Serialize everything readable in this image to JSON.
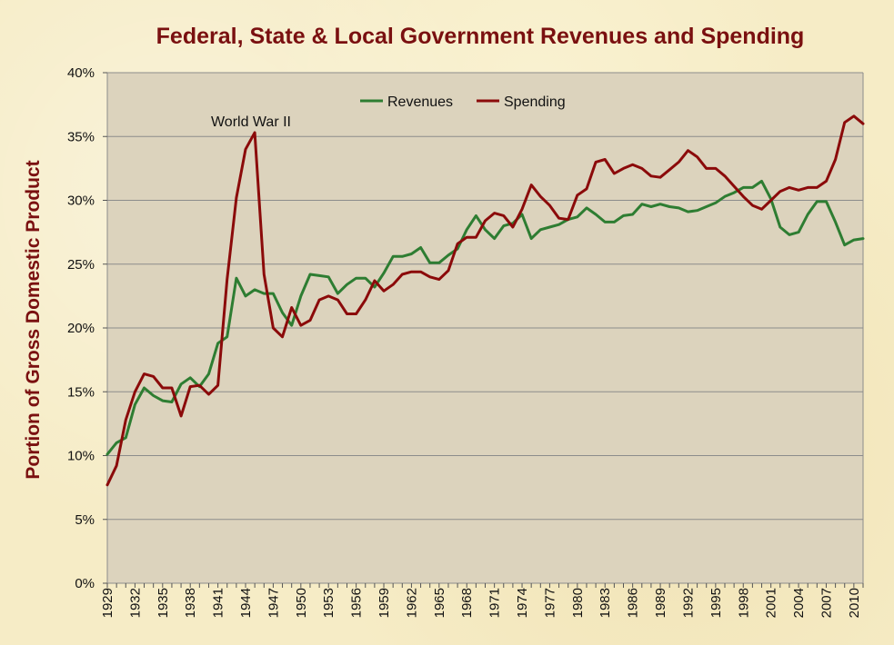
{
  "chart_data": {
    "type": "line",
    "title": "Federal, State & Local Government Revenues and Spending",
    "ylabel": "Portion of Gross Domestic Product",
    "xlabel": "",
    "xlim": [
      1929,
      2011
    ],
    "ylim": [
      0,
      40
    ],
    "yticks": [
      "0%",
      "5%",
      "10%",
      "15%",
      "20%",
      "25%",
      "30%",
      "35%",
      "40%"
    ],
    "xticks": [
      "1929",
      "1932",
      "1935",
      "1938",
      "1941",
      "1944",
      "1947",
      "1950",
      "1953",
      "1956",
      "1959",
      "1962",
      "1965",
      "1968",
      "1971",
      "1974",
      "1977",
      "1980",
      "1983",
      "1986",
      "1989",
      "1992",
      "1995",
      "1998",
      "2001",
      "2004",
      "2007",
      "2010"
    ],
    "grid": true,
    "legend_position": "top-center",
    "annotation": {
      "text": "World War II",
      "year": 1945
    },
    "colors": {
      "revenues": "#2e7d32",
      "spending": "#8b0a0a",
      "plot_bg": "#dcd3bd"
    },
    "series": [
      {
        "name": "Revenues",
        "x": [
          1929,
          1930,
          1931,
          1932,
          1933,
          1934,
          1935,
          1936,
          1937,
          1938,
          1939,
          1940,
          1941,
          1942,
          1943,
          1944,
          1945,
          1946,
          1947,
          1948,
          1949,
          1950,
          1951,
          1952,
          1953,
          1954,
          1955,
          1956,
          1957,
          1958,
          1959,
          1960,
          1961,
          1962,
          1963,
          1964,
          1965,
          1966,
          1967,
          1968,
          1969,
          1970,
          1971,
          1972,
          1973,
          1974,
          1975,
          1976,
          1977,
          1978,
          1979,
          1980,
          1981,
          1982,
          1983,
          1984,
          1985,
          1986,
          1987,
          1988,
          1989,
          1990,
          1991,
          1992,
          1993,
          1994,
          1995,
          1996,
          1997,
          1998,
          1999,
          2000,
          2001,
          2002,
          2003,
          2004,
          2005,
          2006,
          2007,
          2008,
          2009,
          2010,
          2011
        ],
        "values": [
          10.1,
          11.0,
          11.4,
          14.0,
          15.3,
          14.7,
          14.3,
          14.2,
          15.6,
          16.1,
          15.4,
          16.4,
          18.8,
          19.3,
          23.9,
          22.5,
          23.0,
          22.7,
          22.7,
          21.2,
          20.2,
          22.5,
          24.2,
          24.1,
          24.0,
          22.7,
          23.4,
          23.9,
          23.9,
          23.2,
          24.3,
          25.6,
          25.6,
          25.8,
          26.3,
          25.1,
          25.1,
          25.7,
          26.2,
          27.7,
          28.8,
          27.7,
          27.0,
          28.0,
          28.2,
          28.9,
          27.0,
          27.7,
          27.9,
          28.1,
          28.5,
          28.7,
          29.4,
          28.9,
          28.3,
          28.3,
          28.8,
          28.9,
          29.7,
          29.5,
          29.7,
          29.5,
          29.4,
          29.1,
          29.2,
          29.5,
          29.8,
          30.3,
          30.6,
          31.0,
          31.0,
          31.5,
          30.1,
          27.9,
          27.3,
          27.5,
          28.9,
          29.9,
          29.9,
          28.3,
          26.5,
          26.9,
          27.0
        ]
      },
      {
        "name": "Spending",
        "x": [
          1929,
          1930,
          1931,
          1932,
          1933,
          1934,
          1935,
          1936,
          1937,
          1938,
          1939,
          1940,
          1941,
          1942,
          1943,
          1944,
          1945,
          1946,
          1947,
          1948,
          1949,
          1950,
          1951,
          1952,
          1953,
          1954,
          1955,
          1956,
          1957,
          1958,
          1959,
          1960,
          1961,
          1962,
          1963,
          1964,
          1965,
          1966,
          1967,
          1968,
          1969,
          1970,
          1971,
          1972,
          1973,
          1974,
          1975,
          1976,
          1977,
          1978,
          1979,
          1980,
          1981,
          1982,
          1983,
          1984,
          1985,
          1986,
          1987,
          1988,
          1989,
          1990,
          1991,
          1992,
          1993,
          1994,
          1995,
          1996,
          1997,
          1998,
          1999,
          2000,
          2001,
          2002,
          2003,
          2004,
          2005,
          2006,
          2007,
          2008,
          2009,
          2010,
          2011
        ],
        "values": [
          7.7,
          9.2,
          12.8,
          15.0,
          16.4,
          16.2,
          15.3,
          15.3,
          13.1,
          15.4,
          15.5,
          14.8,
          15.5,
          23.8,
          30.2,
          34.0,
          35.3,
          24.2,
          20.0,
          19.3,
          21.6,
          20.2,
          20.6,
          22.2,
          22.5,
          22.2,
          21.1,
          21.1,
          22.2,
          23.7,
          22.9,
          23.4,
          24.2,
          24.4,
          24.4,
          24.0,
          23.8,
          24.5,
          26.6,
          27.1,
          27.1,
          28.4,
          29.0,
          28.8,
          27.9,
          29.3,
          31.2,
          30.3,
          29.6,
          28.6,
          28.5,
          30.4,
          30.9,
          33.0,
          33.2,
          32.1,
          32.5,
          32.8,
          32.5,
          31.9,
          31.8,
          32.4,
          33.0,
          33.9,
          33.4,
          32.5,
          32.5,
          31.9,
          31.1,
          30.3,
          29.6,
          29.3,
          30.0,
          30.7,
          31.0,
          30.8,
          31.0,
          31.0,
          31.5,
          33.2,
          36.1,
          36.6,
          36.0
        ]
      }
    ]
  }
}
